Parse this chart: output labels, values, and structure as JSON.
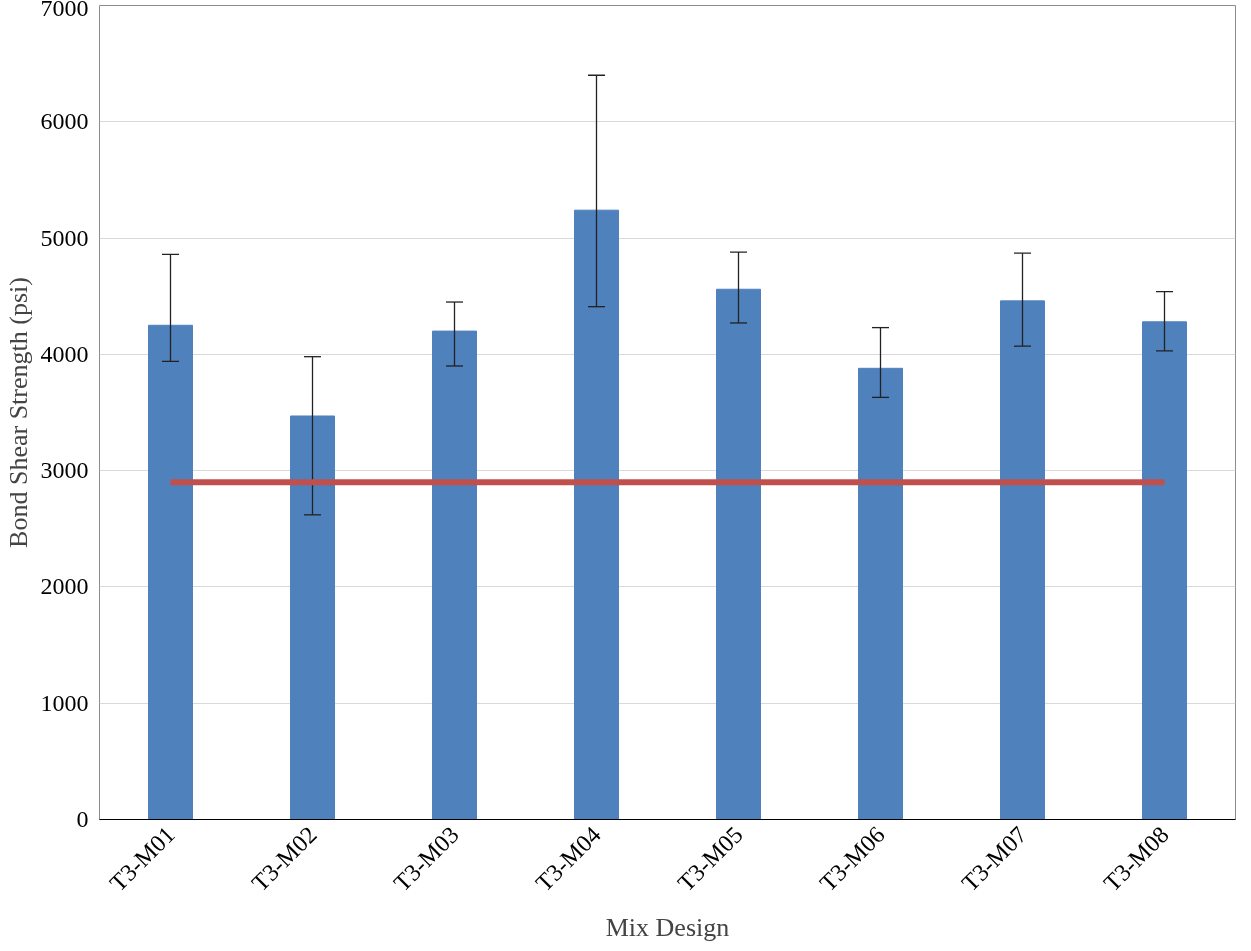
{
  "chart_data": {
    "type": "bar",
    "xlabel": "Mix Design",
    "ylabel": "Bond Shear Strength (psi)",
    "categories": [
      "T3-M01",
      "T3-M02",
      "T3-M03",
      "T3-M04",
      "T3-M05",
      "T3-M06",
      "T3-M07",
      "T3-M08"
    ],
    "values": [
      4250,
      3470,
      4200,
      5240,
      4560,
      3880,
      4460,
      4280
    ],
    "errors": [
      [
        3940,
        4860
      ],
      [
        2620,
        3980
      ],
      [
        3900,
        4450
      ],
      [
        4410,
        6400
      ],
      [
        4270,
        4880
      ],
      [
        3630,
        4230
      ],
      [
        4070,
        4870
      ],
      [
        4030,
        4540
      ]
    ],
    "color": "#4f81bd",
    "ylim": [
      0,
      7000
    ],
    "yticks": [
      0,
      1000,
      2000,
      3000,
      4000,
      5000,
      6000,
      7000
    ],
    "grid": "y",
    "ref_lines": [
      {
        "axis": "y",
        "value": 2900,
        "label": null,
        "color": "#c0504d"
      }
    ]
  }
}
